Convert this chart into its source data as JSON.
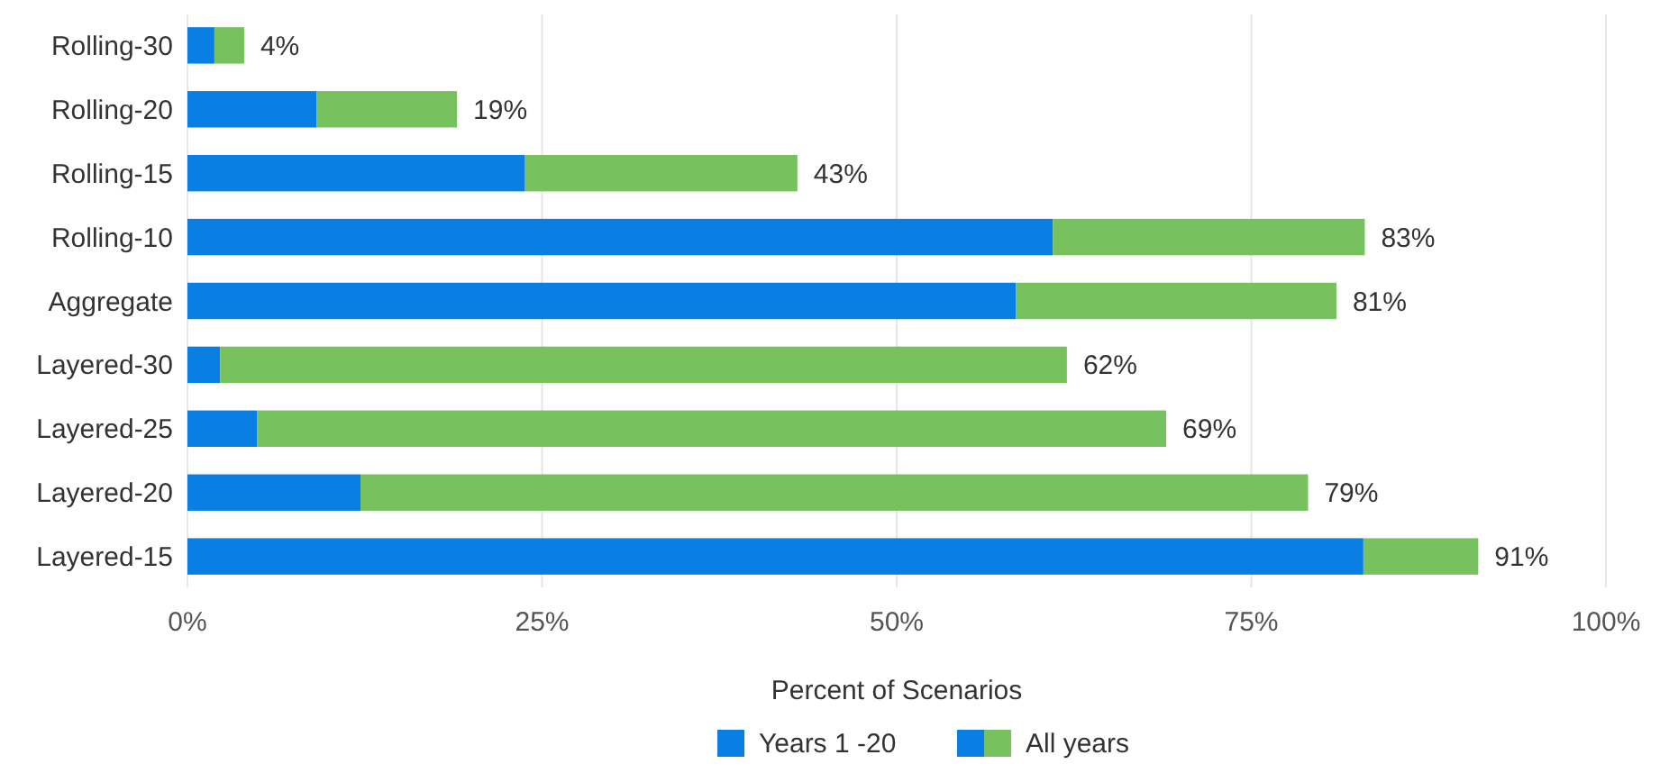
{
  "chart_data": {
    "type": "bar",
    "orientation": "horizontal",
    "stacked": true,
    "categories": [
      "Rolling-30",
      "Rolling-20",
      "Rolling-15",
      "Rolling-10",
      "Aggregate",
      "Layered-30",
      "Layered-25",
      "Layered-20",
      "Layered-15"
    ],
    "series": [
      {
        "name": "Years 1 -20",
        "color": "#0a7fe3",
        "values": [
          1.9,
          9.1,
          23.8,
          61,
          58.4,
          2.3,
          4.9,
          12.2,
          82.9
        ]
      },
      {
        "name": "All years",
        "color": "#77c25f",
        "values": [
          2.1,
          9.9,
          19.2,
          22,
          22.6,
          59.7,
          64.1,
          66.8,
          8.1
        ]
      }
    ],
    "totals": [
      "4%",
      "19%",
      "43%",
      "83%",
      "81%",
      "62%",
      "69%",
      "79%",
      "91%"
    ],
    "xlim": [
      0,
      100
    ],
    "xticks": [
      {
        "value": 0,
        "label": "0%"
      },
      {
        "value": 25,
        "label": "25%"
      },
      {
        "value": 50,
        "label": "50%"
      },
      {
        "value": 75,
        "label": "75%"
      },
      {
        "value": 100,
        "label": "100%"
      }
    ],
    "xlabel": "Percent of Scenarios",
    "grid": "x",
    "legend": "bottom"
  }
}
